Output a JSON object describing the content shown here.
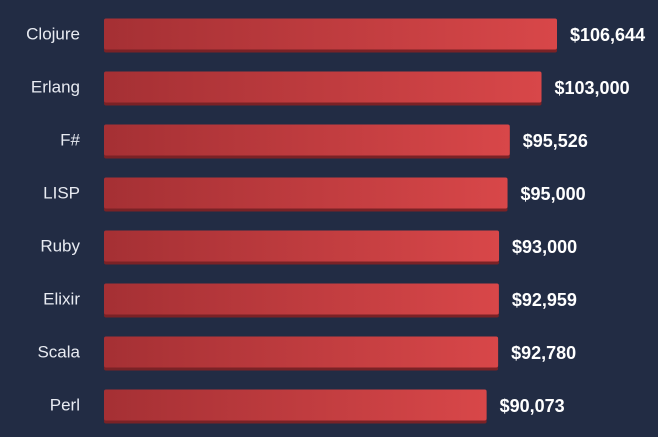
{
  "chart_data": {
    "type": "bar",
    "orientation": "horizontal",
    "categories": [
      "Clojure",
      "Erlang",
      "F#",
      "LISP",
      "Ruby",
      "Elixir",
      "Scala",
      "Perl"
    ],
    "values": [
      106644,
      103000,
      95526,
      95000,
      93000,
      92959,
      92780,
      90073
    ],
    "value_labels": [
      "$106,644",
      "$103,000",
      "$95,526",
      "$95,000",
      "$93,000",
      "$92,959",
      "$92,780",
      "$90,073"
    ],
    "color": "#d84749"
  }
}
